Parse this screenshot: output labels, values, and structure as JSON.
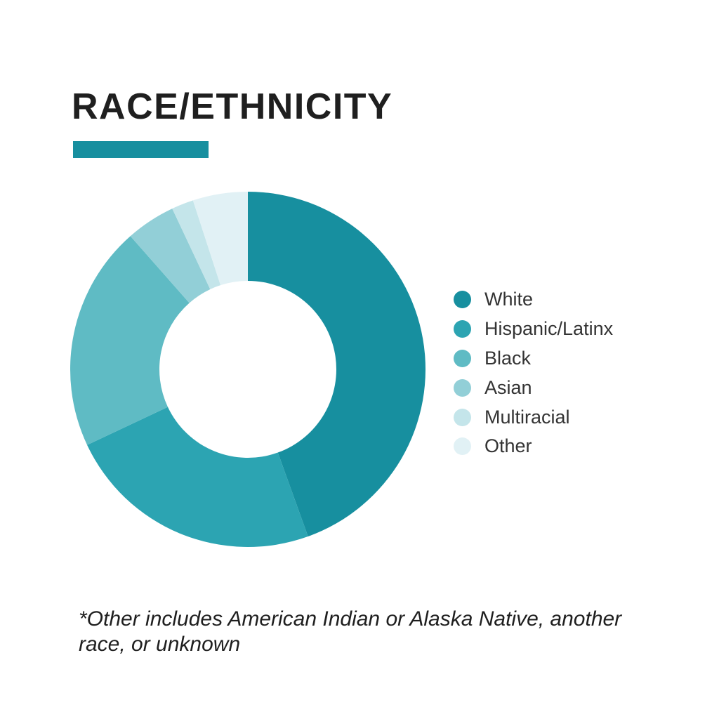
{
  "header": {
    "title": "RACE/ETHNICITY",
    "accent_color": "#178f9f"
  },
  "chart_data": {
    "type": "pie",
    "donut": true,
    "title": "RACE/ETHNICITY",
    "categories": [
      "White",
      "Hispanic/Latinx",
      "Black",
      "Asian",
      "Multiracial",
      "Other"
    ],
    "values": [
      44.5,
      23.5,
      20.5,
      4.5,
      2.0,
      5.0
    ],
    "colors": [
      "#178f9f",
      "#2ca4b2",
      "#5fbbc4",
      "#92cfd7",
      "#c4e5ea",
      "#e1f1f5"
    ],
    "legend": "right"
  },
  "footnote": {
    "text": "*Other includes American Indian or Alaska Native, another race, or unknown"
  }
}
